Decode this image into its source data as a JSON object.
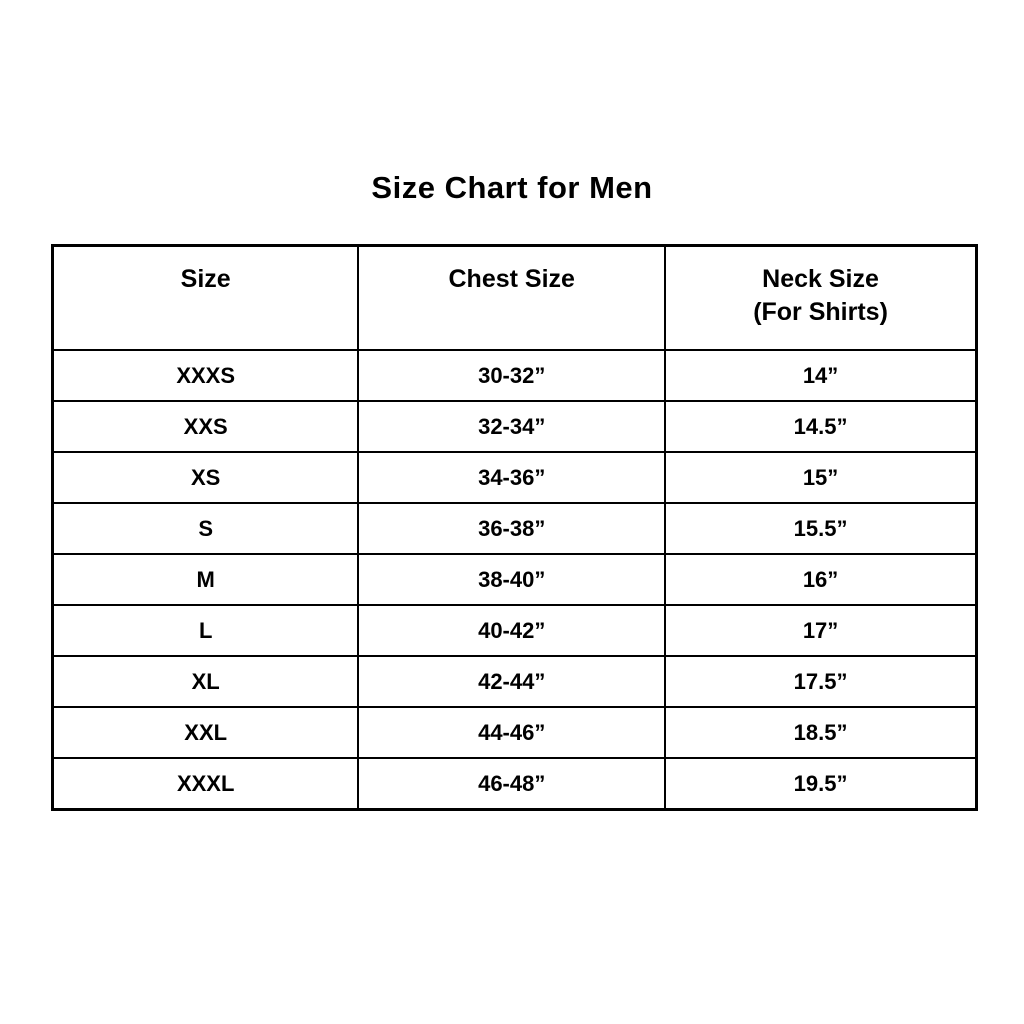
{
  "page": {
    "background": "#ffffff",
    "text_color": "#000000",
    "border_color": "#000000"
  },
  "title": "Size Chart for Men",
  "chart_data": {
    "type": "table",
    "title": "Size Chart for Men",
    "columns": [
      "Size",
      "Chest Size",
      "Neck Size (For Shirts)"
    ],
    "header": {
      "size_label": "Size",
      "chest_label": "Chest Size",
      "neck_label_line1": "Neck Size",
      "neck_label_line2": "(For Shirts)"
    },
    "rows": [
      [
        "XXXS",
        "30-32”",
        "14”"
      ],
      [
        "XXS",
        "32-34”",
        "14.5”"
      ],
      [
        "XS",
        "34-36”",
        "15”"
      ],
      [
        "S",
        "36-38”",
        "15.5”"
      ],
      [
        "M",
        "38-40”",
        "16”"
      ],
      [
        "L",
        "40-42”",
        "17”"
      ],
      [
        "XL",
        "42-44”",
        "17.5”"
      ],
      [
        "XXL",
        "44-46”",
        "18.5”"
      ],
      [
        "XXXL",
        "46-48”",
        "19.5”"
      ]
    ]
  }
}
